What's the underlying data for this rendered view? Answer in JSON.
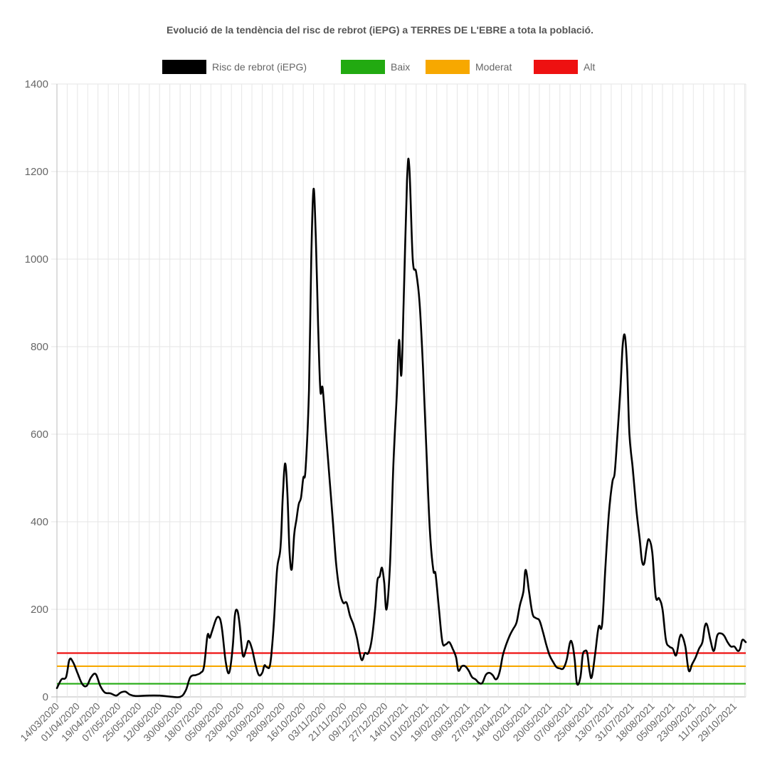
{
  "chart_data": {
    "type": "line",
    "title": "Evolució de la tendència del risc de rebrot (iEPG) a TERRES DE L'EBRE a tota la població.",
    "xlabel": "",
    "ylabel": "",
    "ylim": [
      0,
      1400
    ],
    "yticks": [
      0,
      200,
      400,
      600,
      800,
      1000,
      1200,
      1400
    ],
    "x_tick_labels": [
      "14/03/2020",
      "01/04/2020",
      "19/04/2020",
      "07/05/2020",
      "25/05/2020",
      "12/06/2020",
      "30/06/2020",
      "18/07/2020",
      "05/08/2020",
      "23/08/2020",
      "10/09/2020",
      "28/09/2020",
      "16/10/2020",
      "03/11/2020",
      "21/11/2020",
      "09/12/2020",
      "27/12/2020",
      "14/01/2021",
      "01/02/2021",
      "19/02/2021",
      "09/03/2021",
      "27/03/2021",
      "14/04/2021",
      "02/05/2021",
      "20/05/2021",
      "07/06/2021",
      "25/06/2021",
      "13/07/2021",
      "31/07/2021",
      "18/08/2021",
      "05/09/2021",
      "23/09/2021",
      "11/10/2021",
      "29/10/2021"
    ],
    "x_start": "14/03/2020",
    "x_end": "08/11/2021",
    "legend_position": "top",
    "grid": true,
    "series": [
      {
        "name": "Risc de rebrot (iEPG)",
        "color": "#000000",
        "points": [
          [
            "14/03/2020",
            20
          ],
          [
            "18/03/2020",
            40
          ],
          [
            "22/03/2020",
            45
          ],
          [
            "25/03/2020",
            85
          ],
          [
            "28/03/2020",
            80
          ],
          [
            "01/04/2020",
            55
          ],
          [
            "05/04/2020",
            30
          ],
          [
            "09/04/2020",
            25
          ],
          [
            "13/04/2020",
            45
          ],
          [
            "17/04/2020",
            52
          ],
          [
            "21/04/2020",
            25
          ],
          [
            "25/04/2020",
            10
          ],
          [
            "30/04/2020",
            8
          ],
          [
            "05/05/2020",
            3
          ],
          [
            "09/05/2020",
            10
          ],
          [
            "13/05/2020",
            12
          ],
          [
            "17/05/2020",
            5
          ],
          [
            "22/05/2020",
            2
          ],
          [
            "01/06/2020",
            3
          ],
          [
            "12/06/2020",
            3
          ],
          [
            "20/06/2020",
            1
          ],
          [
            "30/06/2020",
            0
          ],
          [
            "05/07/2020",
            15
          ],
          [
            "09/07/2020",
            45
          ],
          [
            "14/07/2020",
            50
          ],
          [
            "18/07/2020",
            55
          ],
          [
            "21/07/2020",
            70
          ],
          [
            "24/07/2020",
            140
          ],
          [
            "26/07/2020",
            135
          ],
          [
            "28/07/2020",
            150
          ],
          [
            "01/08/2020",
            180
          ],
          [
            "04/08/2020",
            178
          ],
          [
            "06/08/2020",
            150
          ],
          [
            "09/08/2020",
            80
          ],
          [
            "12/08/2020",
            55
          ],
          [
            "15/08/2020",
            110
          ],
          [
            "17/08/2020",
            185
          ],
          [
            "19/08/2020",
            198
          ],
          [
            "21/08/2020",
            170
          ],
          [
            "24/08/2020",
            95
          ],
          [
            "27/08/2020",
            110
          ],
          [
            "29/08/2020",
            128
          ],
          [
            "01/09/2020",
            110
          ],
          [
            "04/09/2020",
            75
          ],
          [
            "07/09/2020",
            50
          ],
          [
            "10/09/2020",
            55
          ],
          [
            "12/09/2020",
            72
          ],
          [
            "14/09/2020",
            68
          ],
          [
            "17/09/2020",
            75
          ],
          [
            "20/09/2020",
            160
          ],
          [
            "23/09/2020",
            290
          ],
          [
            "26/09/2020",
            340
          ],
          [
            "28/09/2020",
            455
          ],
          [
            "30/09/2020",
            533
          ],
          [
            "02/10/2020",
            470
          ],
          [
            "04/10/2020",
            330
          ],
          [
            "06/10/2020",
            292
          ],
          [
            "08/10/2020",
            370
          ],
          [
            "10/10/2020",
            405
          ],
          [
            "12/10/2020",
            440
          ],
          [
            "14/10/2020",
            455
          ],
          [
            "16/10/2020",
            500
          ],
          [
            "18/10/2020",
            520
          ],
          [
            "21/10/2020",
            700
          ],
          [
            "23/10/2020",
            1000
          ],
          [
            "25/10/2020",
            1160
          ],
          [
            "27/10/2020",
            1050
          ],
          [
            "29/10/2020",
            850
          ],
          [
            "31/10/2020",
            700
          ],
          [
            "02/11/2020",
            705
          ],
          [
            "05/11/2020",
            600
          ],
          [
            "08/11/2020",
            500
          ],
          [
            "11/11/2020",
            400
          ],
          [
            "14/11/2020",
            300
          ],
          [
            "17/11/2020",
            240
          ],
          [
            "20/11/2020",
            215
          ],
          [
            "23/11/2020",
            215
          ],
          [
            "26/11/2020",
            185
          ],
          [
            "29/11/2020",
            165
          ],
          [
            "02/12/2020",
            135
          ],
          [
            "06/12/2020",
            85
          ],
          [
            "09/12/2020",
            100
          ],
          [
            "12/12/2020",
            100
          ],
          [
            "15/12/2020",
            130
          ],
          [
            "18/12/2020",
            200
          ],
          [
            "20/12/2020",
            265
          ],
          [
            "22/12/2020",
            275
          ],
          [
            "24/12/2020",
            295
          ],
          [
            "26/12/2020",
            260
          ],
          [
            "28/12/2020",
            200
          ],
          [
            "31/12/2020",
            300
          ],
          [
            "03/01/2021",
            530
          ],
          [
            "06/01/2021",
            690
          ],
          [
            "08/01/2021",
            815
          ],
          [
            "10/01/2021",
            735
          ],
          [
            "12/01/2021",
            900
          ],
          [
            "15/01/2021",
            1180
          ],
          [
            "17/01/2021",
            1210
          ],
          [
            "20/01/2021",
            1000
          ],
          [
            "23/01/2021",
            970
          ],
          [
            "26/01/2021",
            900
          ],
          [
            "29/01/2021",
            750
          ],
          [
            "01/02/2021",
            560
          ],
          [
            "04/02/2021",
            380
          ],
          [
            "07/02/2021",
            290
          ],
          [
            "09/02/2021",
            280
          ],
          [
            "12/02/2021",
            200
          ],
          [
            "15/02/2021",
            125
          ],
          [
            "18/02/2021",
            120
          ],
          [
            "21/02/2021",
            125
          ],
          [
            "24/02/2021",
            110
          ],
          [
            "27/02/2021",
            90
          ],
          [
            "01/03/2021",
            60
          ],
          [
            "04/03/2021",
            70
          ],
          [
            "07/03/2021",
            70
          ],
          [
            "10/03/2021",
            60
          ],
          [
            "13/03/2021",
            45
          ],
          [
            "16/03/2021",
            40
          ],
          [
            "19/03/2021",
            32
          ],
          [
            "22/03/2021",
            32
          ],
          [
            "25/03/2021",
            50
          ],
          [
            "28/03/2021",
            55
          ],
          [
            "31/03/2021",
            50
          ],
          [
            "03/04/2021",
            40
          ],
          [
            "06/04/2021",
            55
          ],
          [
            "09/04/2021",
            95
          ],
          [
            "12/04/2021",
            120
          ],
          [
            "15/04/2021",
            140
          ],
          [
            "18/04/2021",
            155
          ],
          [
            "21/04/2021",
            170
          ],
          [
            "24/04/2021",
            210
          ],
          [
            "27/04/2021",
            240
          ],
          [
            "29/04/2021",
            290
          ],
          [
            "02/05/2021",
            240
          ],
          [
            "05/05/2021",
            190
          ],
          [
            "08/05/2021",
            180
          ],
          [
            "11/05/2021",
            175
          ],
          [
            "14/05/2021",
            150
          ],
          [
            "17/05/2021",
            120
          ],
          [
            "20/05/2021",
            95
          ],
          [
            "23/05/2021",
            80
          ],
          [
            "26/05/2021",
            68
          ],
          [
            "29/05/2021",
            65
          ],
          [
            "01/06/2021",
            65
          ],
          [
            "04/06/2021",
            85
          ],
          [
            "07/06/2021",
            125
          ],
          [
            "09/06/2021",
            120
          ],
          [
            "11/06/2021",
            85
          ],
          [
            "13/06/2021",
            30
          ],
          [
            "16/06/2021",
            45
          ],
          [
            "18/06/2021",
            95
          ],
          [
            "20/06/2021",
            105
          ],
          [
            "22/06/2021",
            100
          ],
          [
            "24/06/2021",
            60
          ],
          [
            "26/06/2021",
            45
          ],
          [
            "29/06/2021",
            100
          ],
          [
            "02/07/2021",
            160
          ],
          [
            "05/07/2021",
            165
          ],
          [
            "08/07/2021",
            300
          ],
          [
            "11/07/2021",
            420
          ],
          [
            "14/07/2021",
            490
          ],
          [
            "16/07/2021",
            510
          ],
          [
            "18/07/2021",
            580
          ],
          [
            "21/07/2021",
            700
          ],
          [
            "23/07/2021",
            800
          ],
          [
            "25/07/2021",
            825
          ],
          [
            "27/07/2021",
            750
          ],
          [
            "29/07/2021",
            600
          ],
          [
            "01/08/2021",
            520
          ],
          [
            "04/08/2021",
            430
          ],
          [
            "07/08/2021",
            360
          ],
          [
            "09/08/2021",
            310
          ],
          [
            "11/08/2021",
            305
          ],
          [
            "13/08/2021",
            340
          ],
          [
            "15/08/2021",
            360
          ],
          [
            "18/08/2021",
            330
          ],
          [
            "21/08/2021",
            230
          ],
          [
            "24/08/2021",
            225
          ],
          [
            "27/08/2021",
            200
          ],
          [
            "30/08/2021",
            130
          ],
          [
            "02/09/2021",
            115
          ],
          [
            "05/09/2021",
            110
          ],
          [
            "08/09/2021",
            95
          ],
          [
            "11/09/2021",
            135
          ],
          [
            "13/09/2021",
            140
          ],
          [
            "16/09/2021",
            115
          ],
          [
            "19/09/2021",
            60
          ],
          [
            "22/09/2021",
            75
          ],
          [
            "25/09/2021",
            90
          ],
          [
            "28/09/2021",
            110
          ],
          [
            "01/10/2021",
            125
          ],
          [
            "03/10/2021",
            160
          ],
          [
            "05/10/2021",
            165
          ],
          [
            "08/10/2021",
            130
          ],
          [
            "11/10/2021",
            105
          ],
          [
            "14/10/2021",
            140
          ],
          [
            "17/10/2021",
            145
          ],
          [
            "20/10/2021",
            140
          ],
          [
            "23/10/2021",
            125
          ],
          [
            "26/10/2021",
            115
          ],
          [
            "29/10/2021",
            115
          ],
          [
            "01/11/2021",
            105
          ],
          [
            "03/11/2021",
            110
          ],
          [
            "05/11/2021",
            130
          ],
          [
            "08/11/2021",
            125
          ]
        ]
      },
      {
        "name": "Baix",
        "color": "#22aa11",
        "constant": 30
      },
      {
        "name": "Moderat",
        "color": "#f7a800",
        "constant": 70
      },
      {
        "name": "Alt",
        "color": "#ee1111",
        "constant": 100
      }
    ]
  }
}
